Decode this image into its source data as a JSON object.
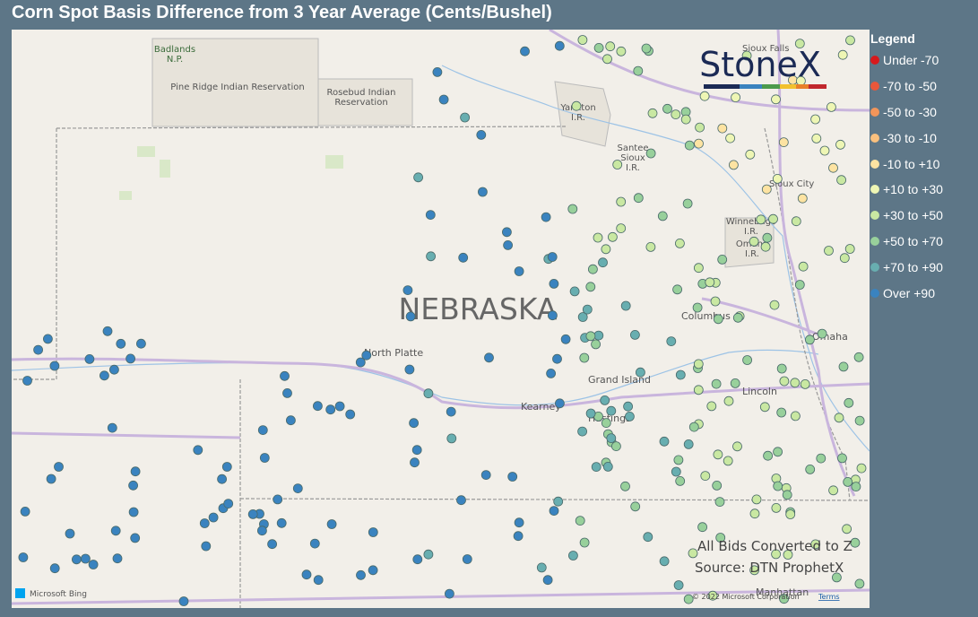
{
  "header": {
    "title": "Corn Spot Basis Difference from 3 Year Average (Cents/Bushel)"
  },
  "logo": "StoneX",
  "legend": {
    "title": "Legend",
    "items": [
      {
        "label": "Under -70",
        "color": "#d7191c"
      },
      {
        "label": "-70 to -50",
        "color": "#e8573a"
      },
      {
        "label": "-50 to -30",
        "color": "#f2955a"
      },
      {
        "label": "-30 to -10",
        "color": "#f9c07e"
      },
      {
        "label": "-10 to +10",
        "color": "#fde3a2"
      },
      {
        "label": "+10 to +30",
        "color": "#eef6b4"
      },
      {
        "label": "+30 to +50",
        "color": "#c9e8a2"
      },
      {
        "label": "+50 to +70",
        "color": "#98d09b"
      },
      {
        "label": "+70 to +90",
        "color": "#68aeb0"
      },
      {
        "label": "Over +90",
        "color": "#3a83bf"
      }
    ]
  },
  "map_labels": {
    "badlands": "Badlands\nN.P.",
    "pine_ridge": "Pine Ridge Indian Reservation",
    "rosebud": "Rosebud Indian\nReservation",
    "yankton": "Yankton\nI.R.",
    "santee": "Santee\nSioux\nI.R.",
    "sioux_falls": "Sioux Falls",
    "sioux_city": "Sioux City",
    "winnebago": "Winnebago\nI.R.",
    "omaha_ir": "Omaha\nI.R.",
    "state": "NEBRASKA",
    "north_platte": "North Platte",
    "columbus": "Columbus",
    "omaha": "Omaha",
    "grand_island": "Grand Island",
    "kearney": "Kearney",
    "hastings": "Hastings",
    "lincoln": "Lincoln",
    "manhattan": "Manhattan"
  },
  "notes": {
    "conversion": "All Bids Converted to Z",
    "source": "Source: DTN ProphetX"
  },
  "attribution": {
    "provider": "Microsoft Bing",
    "copyright": "© 2022 Microsoft Corporation",
    "terms": "Terms"
  }
}
